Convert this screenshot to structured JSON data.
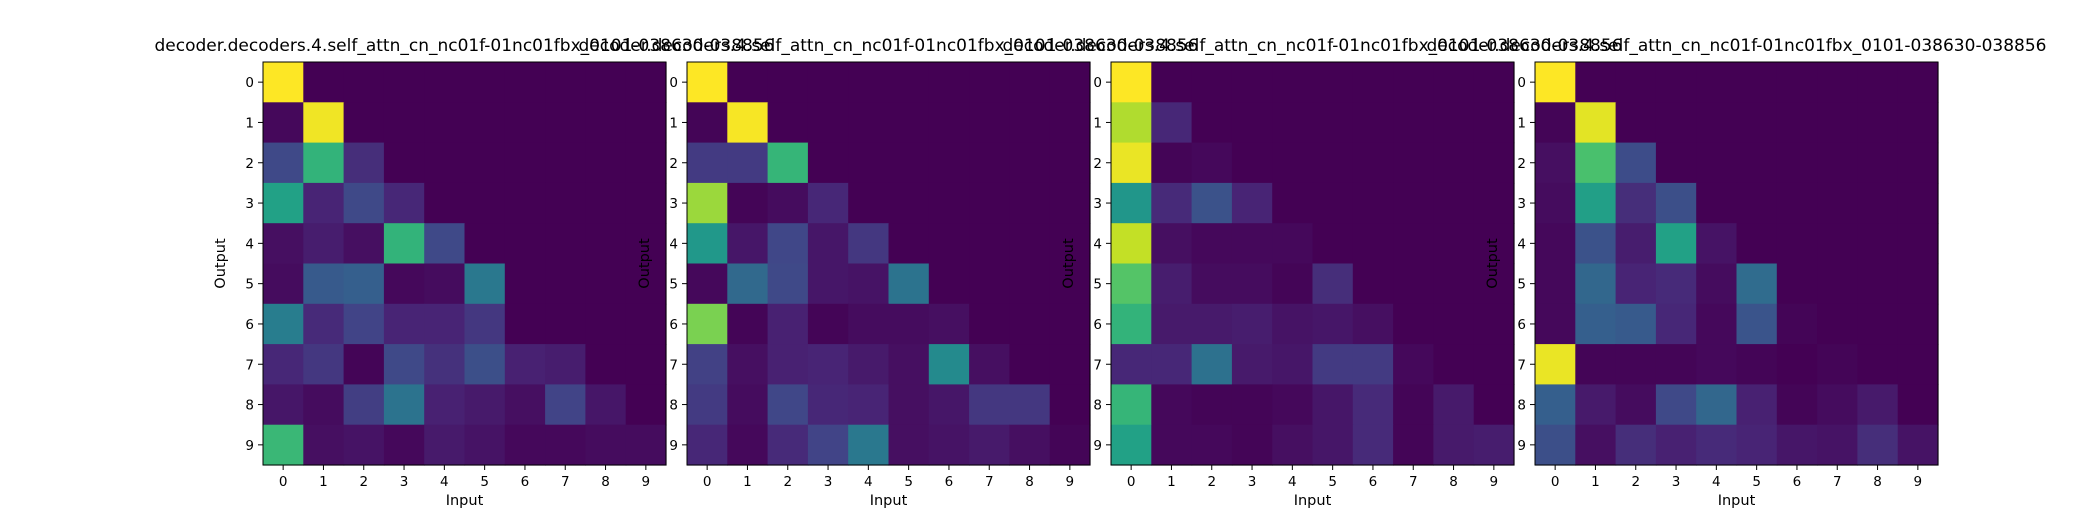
{
  "chart_data": [
    {
      "type": "heatmap",
      "title": "decoder.decoders.4.self_attn_cn_nc01f-01nc01fbx_0101-038630-038856",
      "xlabel": "Input",
      "ylabel": "Output",
      "x_ticks": [
        "0",
        "1",
        "2",
        "3",
        "4",
        "5",
        "6",
        "7",
        "8",
        "9"
      ],
      "y_ticks": [
        "0",
        "1",
        "2",
        "3",
        "4",
        "5",
        "6",
        "7",
        "8",
        "9"
      ],
      "colormap": "viridis",
      "values": [
        [
          1.0,
          0,
          0,
          0,
          0,
          0,
          0,
          0,
          0,
          0
        ],
        [
          0.02,
          0.98,
          0,
          0,
          0,
          0,
          0,
          0,
          0,
          0
        ],
        [
          0.22,
          0.65,
          0.13,
          0,
          0,
          0,
          0,
          0,
          0,
          0
        ],
        [
          0.57,
          0.1,
          0.22,
          0.11,
          0,
          0,
          0,
          0,
          0,
          0
        ],
        [
          0.04,
          0.08,
          0.04,
          0.65,
          0.22,
          0,
          0,
          0,
          0,
          0
        ],
        [
          0.03,
          0.28,
          0.3,
          0.02,
          0.03,
          0.4,
          0,
          0,
          0,
          0
        ],
        [
          0.42,
          0.12,
          0.2,
          0.1,
          0.1,
          0.16,
          0,
          0,
          0,
          0
        ],
        [
          0.11,
          0.16,
          0.01,
          0.22,
          0.14,
          0.24,
          0.09,
          0.08,
          0,
          0
        ],
        [
          0.06,
          0.03,
          0.18,
          0.38,
          0.09,
          0.07,
          0.04,
          0.2,
          0.06,
          0
        ],
        [
          0.67,
          0.04,
          0.05,
          0.02,
          0.07,
          0.05,
          0.02,
          0.02,
          0.03,
          0.03
        ]
      ]
    },
    {
      "type": "heatmap",
      "title": "decoder.decoders.4.self_attn_cn_nc01f-01nc01fbx_0101-038630-038856",
      "xlabel": "Input",
      "ylabel": "Output",
      "x_ticks": [
        "0",
        "1",
        "2",
        "3",
        "4",
        "5",
        "6",
        "7",
        "8",
        "9"
      ],
      "y_ticks": [
        "0",
        "1",
        "2",
        "3",
        "4",
        "5",
        "6",
        "7",
        "8",
        "9"
      ],
      "colormap": "viridis",
      "values": [
        [
          1.0,
          0,
          0,
          0,
          0,
          0,
          0,
          0,
          0,
          0
        ],
        [
          0.01,
          0.99,
          0,
          0,
          0,
          0,
          0,
          0,
          0,
          0
        ],
        [
          0.17,
          0.17,
          0.66,
          0,
          0,
          0,
          0,
          0,
          0,
          0
        ],
        [
          0.85,
          0.01,
          0.03,
          0.11,
          0,
          0,
          0,
          0,
          0,
          0
        ],
        [
          0.53,
          0.06,
          0.21,
          0.06,
          0.16,
          0,
          0,
          0,
          0,
          0
        ],
        [
          0.02,
          0.34,
          0.22,
          0.06,
          0.05,
          0.38,
          0,
          0,
          0,
          0
        ],
        [
          0.8,
          0.01,
          0.09,
          0.01,
          0.03,
          0.03,
          0.04,
          0,
          0,
          0
        ],
        [
          0.19,
          0.04,
          0.09,
          0.1,
          0.07,
          0.04,
          0.47,
          0.04,
          0,
          0
        ],
        [
          0.17,
          0.03,
          0.21,
          0.11,
          0.1,
          0.04,
          0.06,
          0.16,
          0.16,
          0
        ],
        [
          0.11,
          0.02,
          0.12,
          0.2,
          0.4,
          0.04,
          0.05,
          0.07,
          0.04,
          0.01
        ]
      ]
    },
    {
      "type": "heatmap",
      "title": "decoder.decoders.4.self_attn_cn_nc01f-01nc01fbx_0101-038630-038856",
      "xlabel": "Input",
      "ylabel": "Output",
      "x_ticks": [
        "0",
        "1",
        "2",
        "3",
        "4",
        "5",
        "6",
        "7",
        "8",
        "9"
      ],
      "y_ticks": [
        "0",
        "1",
        "2",
        "3",
        "4",
        "5",
        "6",
        "7",
        "8",
        "9"
      ],
      "colormap": "viridis",
      "values": [
        [
          1.0,
          0,
          0,
          0,
          0,
          0,
          0,
          0,
          0,
          0
        ],
        [
          0.88,
          0.11,
          0,
          0,
          0,
          0,
          0,
          0,
          0,
          0
        ],
        [
          0.97,
          0.01,
          0.02,
          0,
          0,
          0,
          0,
          0,
          0,
          0
        ],
        [
          0.52,
          0.12,
          0.25,
          0.1,
          0,
          0,
          0,
          0,
          0,
          0
        ],
        [
          0.91,
          0.04,
          0.02,
          0.02,
          0.02,
          0,
          0,
          0,
          0,
          0
        ],
        [
          0.73,
          0.08,
          0.03,
          0.03,
          0.01,
          0.13,
          0,
          0,
          0,
          0
        ],
        [
          0.65,
          0.07,
          0.07,
          0.08,
          0.05,
          0.06,
          0.04,
          0,
          0,
          0
        ],
        [
          0.11,
          0.11,
          0.37,
          0.07,
          0.06,
          0.17,
          0.17,
          0.02,
          0,
          0
        ],
        [
          0.66,
          0.02,
          0.01,
          0.01,
          0.02,
          0.06,
          0.12,
          0.01,
          0.07,
          0
        ],
        [
          0.57,
          0.02,
          0.02,
          0.01,
          0.04,
          0.06,
          0.12,
          0.01,
          0.07,
          0.08
        ]
      ]
    },
    {
      "type": "heatmap",
      "title": "decoder.decoders.4.self_attn_cn_nc01f-01nc01fbx_0101-038630-038856",
      "xlabel": "Input",
      "ylabel": "Output",
      "x_ticks": [
        "0",
        "1",
        "2",
        "3",
        "4",
        "5",
        "6",
        "7",
        "8",
        "9"
      ],
      "y_ticks": [
        "0",
        "1",
        "2",
        "3",
        "4",
        "5",
        "6",
        "7",
        "8",
        "9"
      ],
      "colormap": "viridis",
      "values": [
        [
          1.0,
          0,
          0,
          0,
          0,
          0,
          0,
          0,
          0,
          0
        ],
        [
          0.01,
          0.96,
          0,
          0,
          0,
          0,
          0,
          0,
          0,
          0
        ],
        [
          0.04,
          0.71,
          0.23,
          0,
          0,
          0,
          0,
          0,
          0,
          0
        ],
        [
          0.03,
          0.56,
          0.13,
          0.24,
          0,
          0,
          0,
          0,
          0,
          0
        ],
        [
          0.02,
          0.25,
          0.08,
          0.57,
          0.05,
          0,
          0,
          0,
          0,
          0
        ],
        [
          0.02,
          0.33,
          0.1,
          0.12,
          0.03,
          0.35,
          0,
          0,
          0,
          0
        ],
        [
          0.02,
          0.3,
          0.28,
          0.11,
          0.02,
          0.26,
          0.01,
          0,
          0,
          0
        ],
        [
          0.97,
          0.01,
          0.01,
          0.01,
          0.02,
          0.01,
          0.0,
          0.01,
          0,
          0
        ],
        [
          0.3,
          0.07,
          0.03,
          0.22,
          0.33,
          0.09,
          0.01,
          0.03,
          0.07,
          0
        ],
        [
          0.24,
          0.04,
          0.13,
          0.09,
          0.12,
          0.1,
          0.06,
          0.05,
          0.13,
          0.05
        ]
      ]
    }
  ]
}
